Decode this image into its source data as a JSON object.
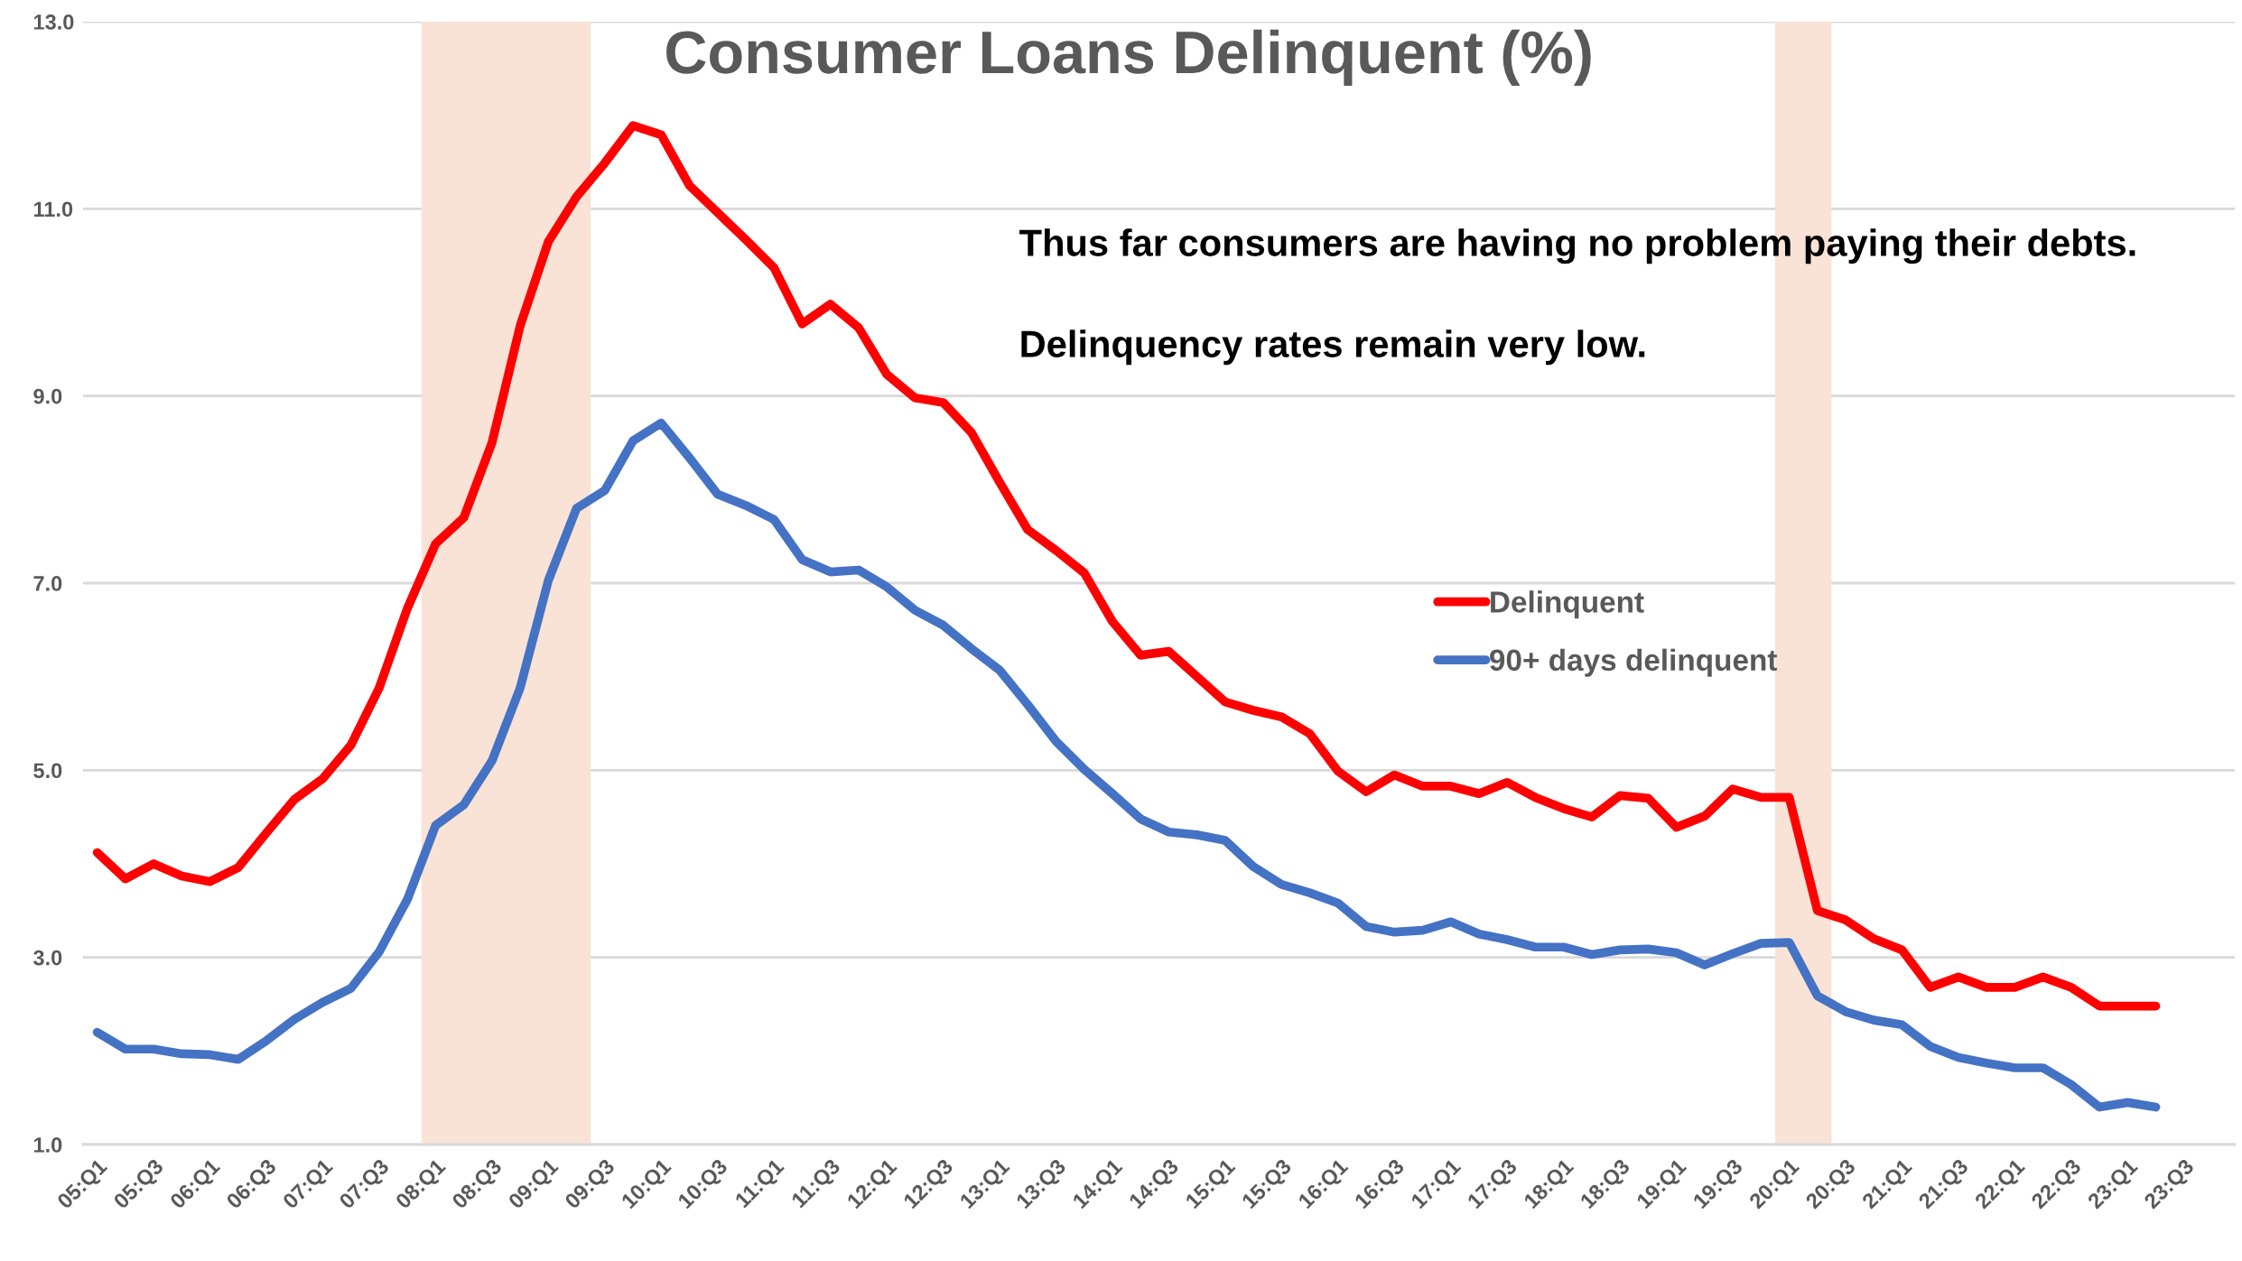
{
  "chart_data": {
    "type": "line",
    "title": "Consumer Loans Delinquent (%)",
    "categories": [
      "05:Q1",
      null,
      "05:Q3",
      null,
      "06:Q1",
      null,
      "06:Q3",
      null,
      "07:Q1",
      null,
      "07:Q3",
      null,
      "08:Q1",
      null,
      "08:Q3",
      null,
      "09:Q1",
      null,
      "09:Q3",
      null,
      "10:Q1",
      null,
      "10:Q3",
      null,
      "11:Q1",
      null,
      "11:Q3",
      null,
      "12:Q1",
      null,
      "12:Q3",
      null,
      "13:Q1",
      null,
      "13:Q3",
      null,
      "14:Q1",
      null,
      "14:Q3",
      null,
      "15:Q1",
      null,
      "15:Q3",
      null,
      "16:Q1",
      null,
      "16:Q3",
      null,
      "17:Q1",
      null,
      "17:Q3",
      null,
      "18:Q1",
      null,
      "18:Q3",
      null,
      "19:Q1",
      null,
      "19:Q3",
      null,
      "20:Q1",
      null,
      "20:Q3",
      null,
      "21:Q1",
      null,
      "21:Q3",
      null,
      "22:Q1",
      null,
      "22:Q3",
      null,
      "23:Q1",
      null,
      "23:Q3"
    ],
    "series": [
      {
        "name": "Delinquent",
        "color": "#ff0000",
        "values": [
          4.12,
          3.84,
          4.0,
          3.87,
          3.81,
          3.96,
          4.33,
          4.69,
          4.91,
          5.27,
          5.88,
          6.73,
          7.42,
          7.7,
          8.5,
          9.75,
          10.65,
          11.13,
          11.49,
          11.89,
          11.79,
          11.25,
          10.96,
          10.67,
          10.37,
          9.77,
          9.98,
          9.73,
          9.23,
          8.98,
          8.93,
          8.61,
          8.08,
          7.57,
          7.35,
          7.11,
          6.59,
          6.23,
          6.27,
          6.0,
          5.73,
          5.64,
          5.57,
          5.39,
          4.99,
          4.77,
          4.95,
          4.83,
          4.83,
          4.75,
          4.87,
          4.71,
          4.59,
          4.5,
          4.73,
          4.7,
          4.39,
          4.51,
          4.8,
          4.71,
          4.71,
          3.5,
          3.4,
          3.2,
          3.08,
          2.68,
          2.79,
          2.68,
          2.68,
          2.79,
          2.68,
          2.48,
          2.48,
          2.48,
          null
        ]
      },
      {
        "name": "90+ days delinquent",
        "color": "#4472c4",
        "values": [
          2.2,
          2.02,
          2.02,
          1.97,
          1.96,
          1.91,
          2.11,
          2.34,
          2.52,
          2.67,
          3.06,
          3.62,
          4.41,
          4.63,
          5.1,
          5.88,
          7.03,
          7.8,
          7.99,
          8.52,
          8.71,
          8.34,
          7.95,
          7.83,
          7.68,
          7.25,
          7.12,
          7.14,
          6.96,
          6.71,
          6.55,
          6.3,
          6.07,
          5.7,
          5.31,
          5.01,
          4.75,
          4.48,
          4.34,
          4.31,
          4.25,
          3.97,
          3.78,
          3.69,
          3.58,
          3.33,
          3.27,
          3.29,
          3.38,
          3.25,
          3.19,
          3.11,
          3.11,
          3.03,
          3.08,
          3.09,
          3.05,
          2.92,
          3.04,
          3.15,
          3.16,
          2.59,
          2.42,
          2.33,
          2.28,
          2.05,
          1.93,
          1.87,
          1.82,
          1.82,
          1.64,
          1.4,
          1.45,
          1.4,
          null
        ]
      }
    ],
    "ylim": [
      1,
      13
    ],
    "yticks": [
      {
        "value": 1,
        "label": "1.0"
      },
      {
        "value": 3,
        "label": "3.0"
      },
      {
        "value": 5,
        "label": "5.0"
      },
      {
        "value": 7,
        "label": "7.0"
      },
      {
        "value": 9,
        "label": "9.0"
      },
      {
        "value": 11,
        "label": "11.0"
      },
      {
        "value": 13,
        "label": "13.0"
      }
    ],
    "grid": "y",
    "legend": "center right",
    "line_style": "solid",
    "marker": "none",
    "bands": [
      {
        "axis": "x",
        "from": "08:Q1",
        "to": "09:Q3",
        "color": "#f9e3d6"
      },
      {
        "axis": "x",
        "from": "20:Q1",
        "to": "20:Q3",
        "color": "#f9e3d6"
      }
    ],
    "annotations": [
      "Thus far consumers are having no problem paying their debts.",
      "Delinquency rates remain very low."
    ]
  }
}
